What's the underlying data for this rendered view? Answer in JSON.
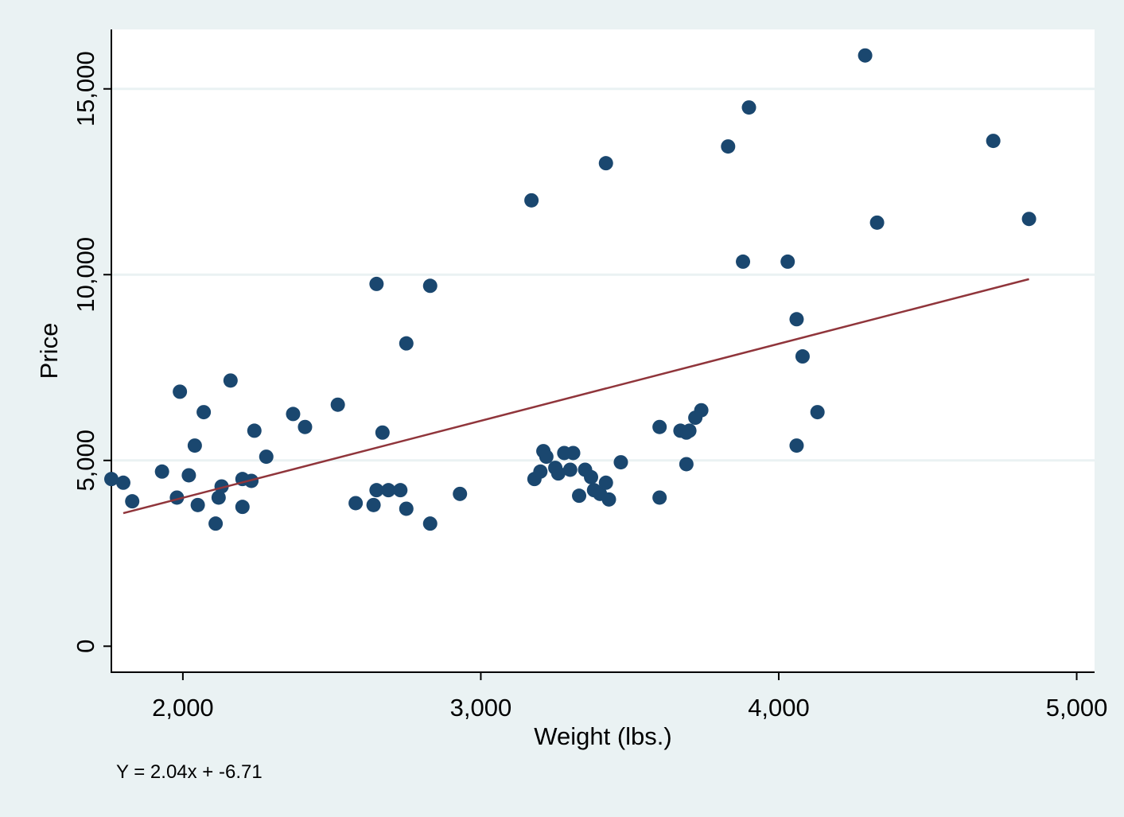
{
  "chart_data": {
    "type": "scatter",
    "xlabel": "Weight (lbs.)",
    "ylabel": "Price",
    "xlim": [
      1760,
      5060
    ],
    "ylim": [
      -700,
      16600
    ],
    "x_ticks": [
      {
        "value": 2000,
        "label": "2,000"
      },
      {
        "value": 3000,
        "label": "3,000"
      },
      {
        "value": 4000,
        "label": "4,000"
      },
      {
        "value": 5000,
        "label": "5,000"
      }
    ],
    "y_ticks": [
      {
        "value": 0,
        "label": "0"
      },
      {
        "value": 5000,
        "label": "5,000"
      },
      {
        "value": 10000,
        "label": "10,000"
      },
      {
        "value": 15000,
        "label": "15,000"
      }
    ],
    "grid": {
      "y": true,
      "x": false
    },
    "note": "Y = 2.04x + -6.71",
    "colors": {
      "background": "#eaf2f3",
      "plot_background": "#ffffff",
      "marker": "#1a476f",
      "fit_line": "#90353b",
      "grid": "#eaf2f3"
    },
    "fit_line": {
      "x1": 1800,
      "y1": 3580,
      "x2": 4840,
      "y2": 9880
    },
    "points": [
      [
        1760,
        4500
      ],
      [
        1800,
        4400
      ],
      [
        1830,
        3900
      ],
      [
        1930,
        4700
      ],
      [
        1980,
        4000
      ],
      [
        1990,
        6850
      ],
      [
        2020,
        4600
      ],
      [
        2040,
        5400
      ],
      [
        2050,
        3800
      ],
      [
        2070,
        6300
      ],
      [
        2110,
        3300
      ],
      [
        2120,
        4000
      ],
      [
        2130,
        4300
      ],
      [
        2160,
        7150
      ],
      [
        2200,
        3750
      ],
      [
        2200,
        4500
      ],
      [
        2230,
        4450
      ],
      [
        2240,
        5800
      ],
      [
        2280,
        5100
      ],
      [
        2370,
        6250
      ],
      [
        2410,
        5900
      ],
      [
        2520,
        6500
      ],
      [
        2580,
        3850
      ],
      [
        2640,
        3800
      ],
      [
        2650,
        4200
      ],
      [
        2650,
        9750
      ],
      [
        2670,
        5750
      ],
      [
        2690,
        4200
      ],
      [
        2730,
        4200
      ],
      [
        2750,
        3700
      ],
      [
        2750,
        8150
      ],
      [
        2830,
        3300
      ],
      [
        2830,
        9700
      ],
      [
        2930,
        4100
      ],
      [
        3170,
        12000
      ],
      [
        3180,
        4500
      ],
      [
        3200,
        4700
      ],
      [
        3210,
        5250
      ],
      [
        3220,
        5100
      ],
      [
        3250,
        4800
      ],
      [
        3260,
        4650
      ],
      [
        3280,
        5200
      ],
      [
        3300,
        4750
      ],
      [
        3310,
        5200
      ],
      [
        3330,
        4050
      ],
      [
        3350,
        4750
      ],
      [
        3370,
        4550
      ],
      [
        3380,
        4200
      ],
      [
        3400,
        4100
      ],
      [
        3420,
        4400
      ],
      [
        3420,
        13000
      ],
      [
        3430,
        3950
      ],
      [
        3470,
        4950
      ],
      [
        3600,
        5900
      ],
      [
        3600,
        4000
      ],
      [
        3670,
        5800
      ],
      [
        3690,
        4900
      ],
      [
        3690,
        5750
      ],
      [
        3700,
        5800
      ],
      [
        3720,
        6150
      ],
      [
        3740,
        6350
      ],
      [
        3830,
        13450
      ],
      [
        3880,
        10350
      ],
      [
        3900,
        14500
      ],
      [
        4030,
        10350
      ],
      [
        4060,
        8800
      ],
      [
        4060,
        5400
      ],
      [
        4080,
        7800
      ],
      [
        4130,
        6300
      ],
      [
        4290,
        15900
      ],
      [
        4330,
        11400
      ],
      [
        4720,
        13600
      ],
      [
        4840,
        11500
      ]
    ]
  }
}
